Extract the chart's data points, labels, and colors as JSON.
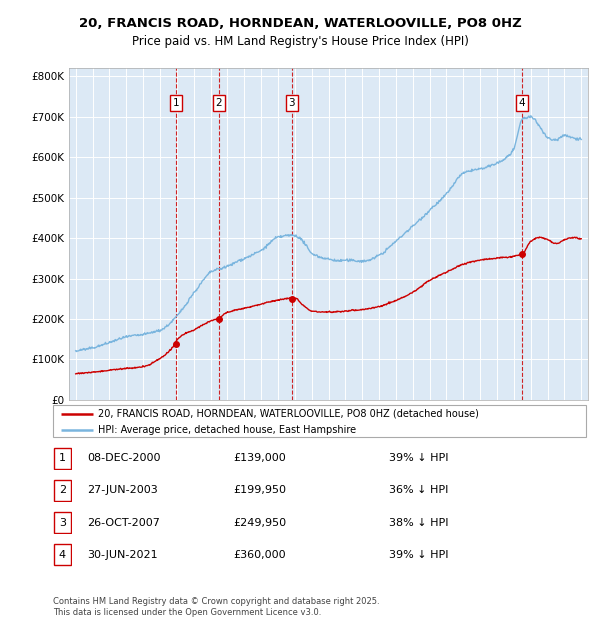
{
  "title": "20, FRANCIS ROAD, HORNDEAN, WATERLOOVILLE, PO8 0HZ",
  "subtitle": "Price paid vs. HM Land Registry's House Price Index (HPI)",
  "background_color": "#ffffff",
  "plot_bg_color": "#dce9f5",
  "grid_color": "#ffffff",
  "hpi_line_color": "#7ab5de",
  "price_line_color": "#cc0000",
  "vline_color": "#cc0000",
  "transactions": [
    {
      "num": 1,
      "date_str": "08-DEC-2000",
      "date_x": 2000.94,
      "price": 139000
    },
    {
      "num": 2,
      "date_str": "27-JUN-2003",
      "date_x": 2003.49,
      "price": 199950
    },
    {
      "num": 3,
      "date_str": "26-OCT-2007",
      "date_x": 2007.82,
      "price": 249950
    },
    {
      "num": 4,
      "date_str": "30-JUN-2021",
      "date_x": 2021.49,
      "price": 360000
    }
  ],
  "ylim": [
    0,
    820000
  ],
  "xlim": [
    1994.6,
    2025.4
  ],
  "yticks": [
    0,
    100000,
    200000,
    300000,
    400000,
    500000,
    600000,
    700000,
    800000
  ],
  "ytick_labels": [
    "£0",
    "£100K",
    "£200K",
    "£300K",
    "£400K",
    "£500K",
    "£600K",
    "£700K",
    "£800K"
  ],
  "xticks": [
    1995,
    1996,
    1997,
    1998,
    1999,
    2000,
    2001,
    2002,
    2003,
    2004,
    2005,
    2006,
    2007,
    2008,
    2009,
    2010,
    2011,
    2012,
    2013,
    2014,
    2015,
    2016,
    2017,
    2018,
    2019,
    2020,
    2021,
    2022,
    2023,
    2024,
    2025
  ],
  "legend_house": "20, FRANCIS ROAD, HORNDEAN, WATERLOOVILLE, PO8 0HZ (detached house)",
  "legend_hpi": "HPI: Average price, detached house, East Hampshire",
  "footnote": "Contains HM Land Registry data © Crown copyright and database right 2025.\nThis data is licensed under the Open Government Licence v3.0.",
  "table_rows": [
    [
      "1",
      "08-DEC-2000",
      "£139,000",
      "39% ↓ HPI"
    ],
    [
      "2",
      "27-JUN-2003",
      "£199,950",
      "36% ↓ HPI"
    ],
    [
      "3",
      "26-OCT-2007",
      "£249,950",
      "38% ↓ HPI"
    ],
    [
      "4",
      "30-JUN-2021",
      "£360,000",
      "39% ↓ HPI"
    ]
  ]
}
